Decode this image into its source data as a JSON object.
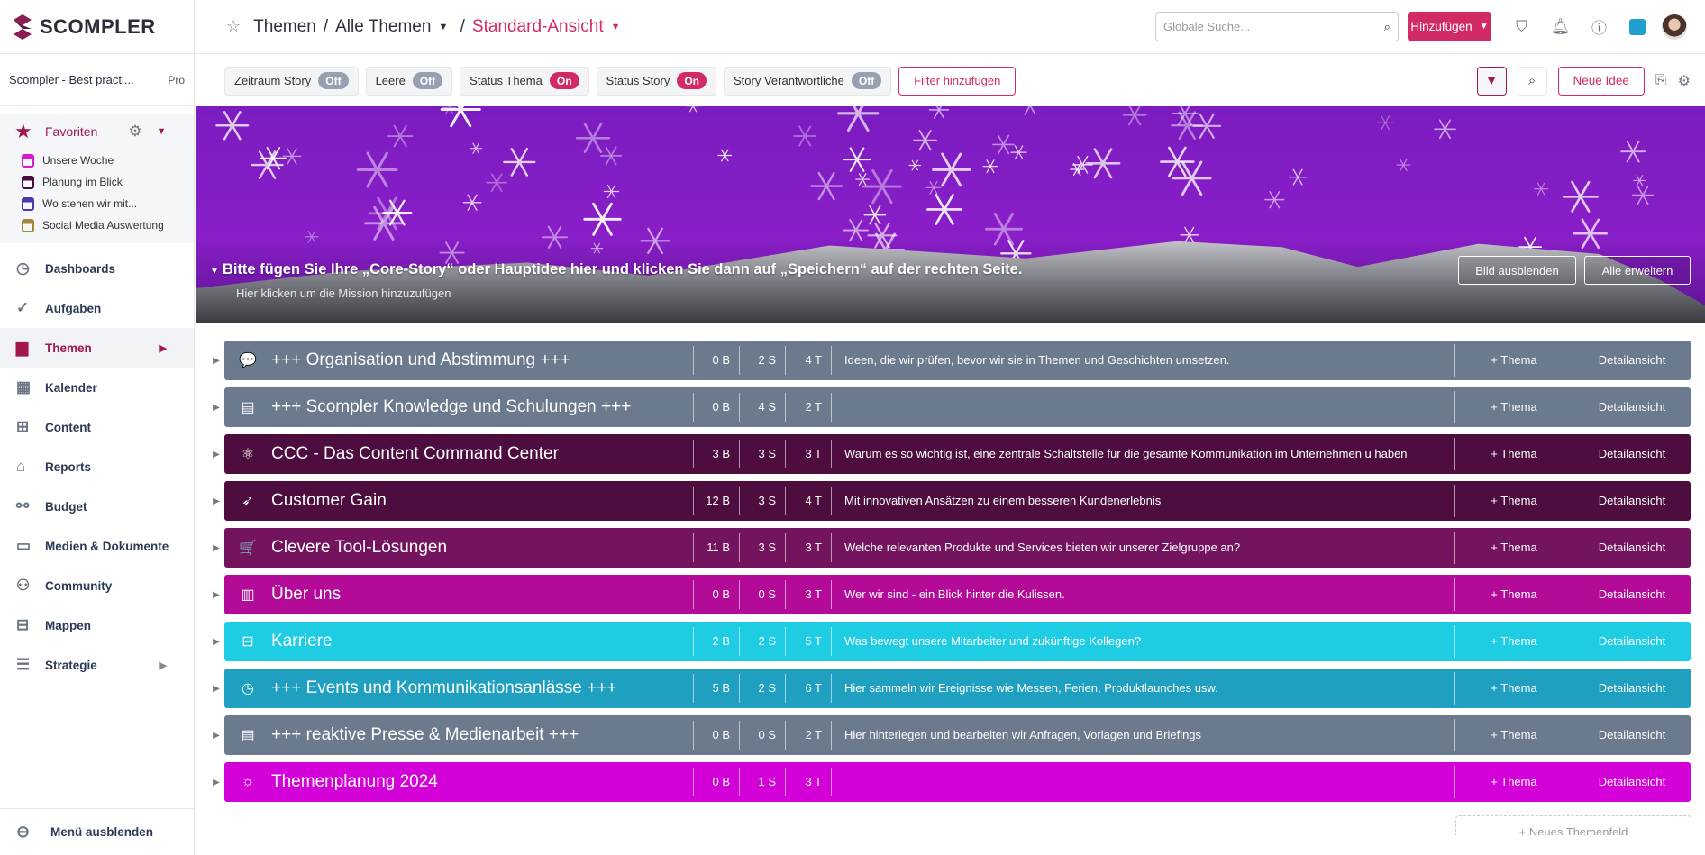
{
  "brand": {
    "name": "SCOMPLER",
    "color": "#a3174f",
    "accent": "#d12a66"
  },
  "workspace": {
    "name": "Scompler - Best practi...",
    "plan": "Pro"
  },
  "favorites": {
    "label": "Favoriten",
    "items": [
      {
        "label": "Unsere Woche",
        "color": "#d81ad0"
      },
      {
        "label": "Planung im Blick",
        "color": "#4a0e3c"
      },
      {
        "label": "Wo stehen wir mit...",
        "color": "#4b3aa6"
      },
      {
        "label": "Social Media Auswertung",
        "color": "#a08a3c"
      }
    ]
  },
  "nav": [
    {
      "label": "Dashboards",
      "icon": "gauge-icon",
      "glyph": "◷"
    },
    {
      "label": "Aufgaben",
      "icon": "check-circle-icon",
      "glyph": "✓"
    },
    {
      "label": "Themen",
      "icon": "book-icon",
      "glyph": "▆",
      "active": true,
      "arrow": true
    },
    {
      "label": "Kalender",
      "icon": "calendar-icon",
      "glyph": "▦"
    },
    {
      "label": "Content",
      "icon": "table-icon",
      "glyph": "⊞"
    },
    {
      "label": "Reports",
      "icon": "presentation-icon",
      "glyph": "⌂"
    },
    {
      "label": "Budget",
      "icon": "budget-chart-icon",
      "glyph": "⚯"
    },
    {
      "label": "Medien & Dokumente",
      "icon": "archive-icon",
      "glyph": "▭"
    },
    {
      "label": "Community",
      "icon": "community-icon",
      "glyph": "⚇"
    },
    {
      "label": "Mappen",
      "icon": "briefcase-icon",
      "glyph": "⊟"
    },
    {
      "label": "Strategie",
      "icon": "sliders-icon",
      "glyph": "☰",
      "arrow": true
    }
  ],
  "hide_menu": "Menü ausblenden",
  "breadcrumb": {
    "items": [
      "Themen",
      "Alle Themen"
    ],
    "current": "Standard-Ansicht"
  },
  "search": {
    "placeholder": "Globale Suche..."
  },
  "add_button": "Hinzufügen",
  "filters": [
    {
      "label": "Zeitraum Story",
      "state": "Off"
    },
    {
      "label": "Leere",
      "state": "Off"
    },
    {
      "label": "Status Thema",
      "state": "On"
    },
    {
      "label": "Status Story",
      "state": "On"
    },
    {
      "label": "Story Verantwortliche",
      "state": "Off"
    }
  ],
  "add_filter": "Filter hinzufügen",
  "new_idea": "Neue Idee",
  "banner": {
    "title": "Bitte fügen Sie Ihre „Core-Story“ oder Hauptidee hier und klicken Sie dann auf „Speichern“ auf der rechten Seite.",
    "subtitle": "Hier klicken um die Mission hinzuzufügen",
    "hide_image": "Bild ausblenden",
    "expand_all": "Alle erweitern"
  },
  "row_actions": {
    "add_topic": "+ Thema",
    "detail": "Detailansicht"
  },
  "topic_fields": [
    {
      "name": "+++ Organisation und Abstimmung +++",
      "b": "0 B",
      "s": "2 S",
      "t": "4 T",
      "desc": "Ideen, die wir prüfen, bevor wir sie in Themen und Geschichten umsetzen.",
      "color": "#6b7a8d",
      "icon": "chat-icon",
      "glyph": "💬"
    },
    {
      "name": "+++ Scompler Knowledge und Schulungen +++",
      "b": "0 B",
      "s": "4 S",
      "t": "2 T",
      "desc": "",
      "color": "#6b7a8d",
      "icon": "newspaper-icon",
      "glyph": "▤"
    },
    {
      "name": "CCC - Das Content Command Center",
      "b": "3 B",
      "s": "3 S",
      "t": "3 T",
      "desc": "Warum es so wichtig ist, eine zentrale Schaltstelle für die gesamte Kommunikation im Unternehmen u haben",
      "color": "#4e0d3f",
      "icon": "atom-icon",
      "glyph": "⚛"
    },
    {
      "name": "Customer Gain",
      "b": "12 B",
      "s": "3 S",
      "t": "4 T",
      "desc": "Mit innovativen Ansätzen zu einem besseren Kundenerlebnis",
      "color": "#4e0d3f",
      "icon": "rocket-icon",
      "glyph": "➶"
    },
    {
      "name": "Clevere Tool-Lösungen",
      "b": "11 B",
      "s": "3 S",
      "t": "3 T",
      "desc": "Welche relevanten Produkte und Services bieten wir unserer Zielgruppe an?",
      "color": "#74145e",
      "icon": "cart-icon",
      "glyph": "🛒"
    },
    {
      "name": "Über uns",
      "b": "0 B",
      "s": "0 S",
      "t": "3 T",
      "desc": "Wer wir sind - ein Blick hinter die Kulissen.",
      "color": "#b30b98",
      "icon": "building-icon",
      "glyph": "▥"
    },
    {
      "name": "Karriere",
      "b": "2 B",
      "s": "2 S",
      "t": "5 T",
      "desc": "Was bewegt unsere Mitarbeiter und zukünftige Kollegen?",
      "color": "#1ecde4",
      "icon": "briefcase-icon",
      "glyph": "⊟"
    },
    {
      "name": "+++ Events und Kommunikationsanlässe +++",
      "b": "5 B",
      "s": "2 S",
      "t": "6 T",
      "desc": "Hier sammeln wir Ereignisse wie Messen, Ferien, Produktlaunches usw.",
      "color": "#1fa0c0",
      "icon": "clock-icon",
      "glyph": "◷"
    },
    {
      "name": "+++ reaktive Presse & Medienarbeit +++",
      "b": "0 B",
      "s": "0 S",
      "t": "2 T",
      "desc": "Hier hinterlegen und bearbeiten wir Anfragen, Vorlagen und Briefings",
      "color": "#6b7a8d",
      "icon": "newspaper-icon",
      "glyph": "▤"
    },
    {
      "name": "Themenplanung 2024",
      "b": "0 B",
      "s": "1 S",
      "t": "3 T",
      "desc": "",
      "color": "#d400d8",
      "icon": "lightbulb-icon",
      "glyph": "☼"
    }
  ],
  "new_field": "+ Neues Themenfeld"
}
